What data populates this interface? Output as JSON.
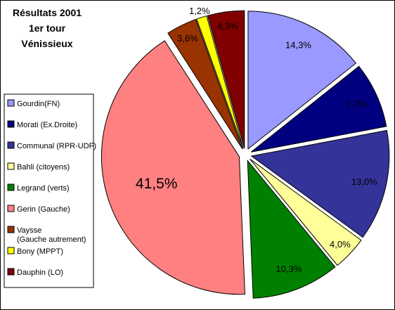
{
  "chart_data": {
    "type": "pie",
    "title_lines": [
      "Résultats 2001",
      "1er tour",
      "Vénissieux"
    ],
    "legend_placement": "left",
    "slices": [
      {
        "label": "Gourdin(FN)",
        "value": 14.3,
        "value_label": "14,3%",
        "color": "#9999FF"
      },
      {
        "label": "Morati (Ex.Droite)",
        "value": 7.7,
        "value_label": "7,7%",
        "color": "#000080"
      },
      {
        "label": "Communal (RPR-UDF)",
        "value": 13.0,
        "value_label": "13,0%",
        "color": "#333399"
      },
      {
        "label": "Bahli (citoyens)",
        "value": 4.0,
        "value_label": "4,0%",
        "color": "#FFFF99"
      },
      {
        "label": "Legrand (verts)",
        "value": 10.3,
        "value_label": "10,3%",
        "color": "#008000"
      },
      {
        "label": "Gerin (Gauche)",
        "value": 41.5,
        "value_label": "41,5%",
        "color": "#FF8080"
      },
      {
        "label": "Vaysse (Gauche autrement)",
        "value": 3.6,
        "value_label": "3,6%",
        "color": "#993300"
      },
      {
        "label": "Bony (MPPT)",
        "value": 1.2,
        "value_label": "1,2%",
        "color": "#FFFF00"
      },
      {
        "label": "Dauphin (LO)",
        "value": 4.3,
        "value_label": "4,3%",
        "color": "#800000"
      }
    ]
  }
}
